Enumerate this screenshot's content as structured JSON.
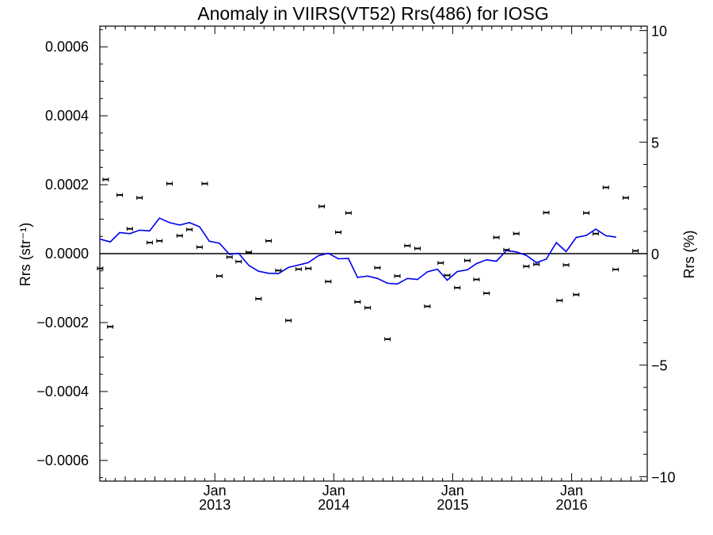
{
  "chart_data": {
    "type": "line",
    "title": "Anomaly in VIIRS(VT52) Rrs(486) for IOSG",
    "ylabel_left": "Rrs (str⁻¹)",
    "ylabel_right": "Rrs (%)",
    "xlabel": "",
    "xlim": [
      "2012-01-14",
      "2016-08-20"
    ],
    "ylim_left": [
      -0.00066,
      0.00066
    ],
    "ylim_right": [
      -10.2,
      10.2
    ],
    "grid": false,
    "zero_line": true,
    "x_ticks": [
      {
        "date": "2013-01-01",
        "month": "Jan",
        "year": "2013"
      },
      {
        "date": "2014-01-01",
        "month": "Jan",
        "year": "2014"
      },
      {
        "date": "2015-01-01",
        "month": "Jan",
        "year": "2015"
      },
      {
        "date": "2016-01-01",
        "month": "Jan",
        "year": "2016"
      }
    ],
    "y_ticks_left": [
      {
        "value": 0.0006,
        "label": "0.0006"
      },
      {
        "value": 0.0004,
        "label": "0.0004"
      },
      {
        "value": 0.0002,
        "label": "0.0002"
      },
      {
        "value": 0.0,
        "label": "0.0000"
      },
      {
        "value": -0.0002,
        "label": "−0.0002"
      },
      {
        "value": -0.0004,
        "label": "−0.0004"
      },
      {
        "value": -0.0006,
        "label": "−0.0006"
      }
    ],
    "y_ticks_right": [
      {
        "value": 10,
        "label": "10"
      },
      {
        "value": 5,
        "label": "5"
      },
      {
        "value": 0,
        "label": "0"
      },
      {
        "value": -5,
        "label": "−5"
      },
      {
        "value": -10,
        "label": "−10"
      }
    ],
    "series": [
      {
        "kind": "points_with_error_bars",
        "color": "#000000",
        "points": [
          {
            "x": "2012-01-15",
            "y": -4.3e-05
          },
          {
            "x": "2012-02-01",
            "y": 0.000215
          },
          {
            "x": "2012-02-15",
            "y": -0.000212
          },
          {
            "x": "2012-03-15",
            "y": 0.00017
          },
          {
            "x": "2012-04-15",
            "y": 7.2e-05
          },
          {
            "x": "2012-05-15",
            "y": 0.000162
          },
          {
            "x": "2012-06-15",
            "y": 3.2e-05
          },
          {
            "x": "2012-07-15",
            "y": 3.7e-05
          },
          {
            "x": "2012-08-15",
            "y": 0.000203
          },
          {
            "x": "2012-09-15",
            "y": 5.2e-05
          },
          {
            "x": "2012-10-15",
            "y": 7e-05
          },
          {
            "x": "2012-11-15",
            "y": 1.9e-05
          },
          {
            "x": "2012-12-01",
            "y": 0.000203
          },
          {
            "x": "2013-01-15",
            "y": -6.5e-05
          },
          {
            "x": "2013-02-15",
            "y": -1e-05
          },
          {
            "x": "2013-03-15",
            "y": -2.3e-05
          },
          {
            "x": "2013-04-15",
            "y": 4e-06
          },
          {
            "x": "2013-05-15",
            "y": -0.000131
          },
          {
            "x": "2013-06-15",
            "y": 3.7e-05
          },
          {
            "x": "2013-07-15",
            "y": -4.9e-05
          },
          {
            "x": "2013-08-15",
            "y": -0.000194
          },
          {
            "x": "2013-09-15",
            "y": -4.5e-05
          },
          {
            "x": "2013-10-15",
            "y": -4.3e-05
          },
          {
            "x": "2013-11-25",
            "y": 0.000137
          },
          {
            "x": "2013-12-15",
            "y": -8.1e-05
          },
          {
            "x": "2014-01-15",
            "y": 6.2e-05
          },
          {
            "x": "2014-02-15",
            "y": 0.000118
          },
          {
            "x": "2014-03-15",
            "y": -0.00014
          },
          {
            "x": "2014-04-15",
            "y": -0.000157
          },
          {
            "x": "2014-05-15",
            "y": -4.1e-05
          },
          {
            "x": "2014-06-15",
            "y": -0.000248
          },
          {
            "x": "2014-07-15",
            "y": -6.5e-05
          },
          {
            "x": "2014-08-15",
            "y": 2.3e-05
          },
          {
            "x": "2014-09-15",
            "y": 1.5e-05
          },
          {
            "x": "2014-10-15",
            "y": -0.000153
          },
          {
            "x": "2014-11-25",
            "y": -2.7e-05
          },
          {
            "x": "2014-12-15",
            "y": -6.3e-05
          },
          {
            "x": "2015-01-15",
            "y": -9.9e-05
          },
          {
            "x": "2015-02-15",
            "y": -2e-05
          },
          {
            "x": "2015-03-15",
            "y": -7.5e-05
          },
          {
            "x": "2015-04-15",
            "y": -0.000115
          },
          {
            "x": "2015-05-15",
            "y": 4.7e-05
          },
          {
            "x": "2015-06-15",
            "y": 1.1e-05
          },
          {
            "x": "2015-07-15",
            "y": 5.8e-05
          },
          {
            "x": "2015-08-15",
            "y": -3.7e-05
          },
          {
            "x": "2015-09-15",
            "y": -3.1e-05
          },
          {
            "x": "2015-10-15",
            "y": 0.000119
          },
          {
            "x": "2015-11-25",
            "y": -0.000136
          },
          {
            "x": "2015-12-15",
            "y": -3.3e-05
          },
          {
            "x": "2016-01-15",
            "y": -0.000119
          },
          {
            "x": "2016-02-15",
            "y": 0.000118
          },
          {
            "x": "2016-03-15",
            "y": 5.8e-05
          },
          {
            "x": "2016-04-15",
            "y": 0.000192
          },
          {
            "x": "2016-05-15",
            "y": -4.6e-05
          },
          {
            "x": "2016-06-15",
            "y": 0.000162
          },
          {
            "x": "2016-07-15",
            "y": 8e-06
          }
        ]
      },
      {
        "kind": "line",
        "color": "#0000ee",
        "points": [
          {
            "x": "2012-01-15",
            "y": 4.2e-05
          },
          {
            "x": "2012-02-15",
            "y": 3.4e-05
          },
          {
            "x": "2012-03-15",
            "y": 6.1e-05
          },
          {
            "x": "2012-04-15",
            "y": 5.8e-05
          },
          {
            "x": "2012-05-15",
            "y": 6.8e-05
          },
          {
            "x": "2012-06-15",
            "y": 6.6e-05
          },
          {
            "x": "2012-07-15",
            "y": 0.000103
          },
          {
            "x": "2012-08-15",
            "y": 9e-05
          },
          {
            "x": "2012-09-15",
            "y": 8.3e-05
          },
          {
            "x": "2012-10-15",
            "y": 9e-05
          },
          {
            "x": "2012-11-15",
            "y": 7.8e-05
          },
          {
            "x": "2012-12-15",
            "y": 3.6e-05
          },
          {
            "x": "2013-01-15",
            "y": 3e-05
          },
          {
            "x": "2013-02-15",
            "y": -2e-06
          },
          {
            "x": "2013-03-15",
            "y": 1e-06
          },
          {
            "x": "2013-04-15",
            "y": -3.4e-05
          },
          {
            "x": "2013-05-15",
            "y": -5.1e-05
          },
          {
            "x": "2013-06-15",
            "y": -5.7e-05
          },
          {
            "x": "2013-07-15",
            "y": -5.8e-05
          },
          {
            "x": "2013-08-15",
            "y": -4e-05
          },
          {
            "x": "2013-09-15",
            "y": -3.3e-05
          },
          {
            "x": "2013-10-15",
            "y": -2.6e-05
          },
          {
            "x": "2013-11-15",
            "y": -6e-06
          },
          {
            "x": "2013-12-15",
            "y": 1e-06
          },
          {
            "x": "2014-01-15",
            "y": -1.5e-05
          },
          {
            "x": "2014-02-15",
            "y": -1.4e-05
          },
          {
            "x": "2014-03-15",
            "y": -6.9e-05
          },
          {
            "x": "2014-04-15",
            "y": -6.5e-05
          },
          {
            "x": "2014-05-15",
            "y": -7.2e-05
          },
          {
            "x": "2014-06-15",
            "y": -8.6e-05
          },
          {
            "x": "2014-07-15",
            "y": -8.8e-05
          },
          {
            "x": "2014-08-15",
            "y": -7.2e-05
          },
          {
            "x": "2014-09-15",
            "y": -7.5e-05
          },
          {
            "x": "2014-10-15",
            "y": -5.3e-05
          },
          {
            "x": "2014-11-15",
            "y": -4.5e-05
          },
          {
            "x": "2014-12-15",
            "y": -7.7e-05
          },
          {
            "x": "2015-01-15",
            "y": -5.2e-05
          },
          {
            "x": "2015-02-15",
            "y": -4.7e-05
          },
          {
            "x": "2015-03-15",
            "y": -2.9e-05
          },
          {
            "x": "2015-04-15",
            "y": -1.8e-05
          },
          {
            "x": "2015-05-15",
            "y": -2.2e-05
          },
          {
            "x": "2015-06-15",
            "y": 9e-06
          },
          {
            "x": "2015-07-15",
            "y": 5e-06
          },
          {
            "x": "2015-08-15",
            "y": -5e-06
          },
          {
            "x": "2015-09-15",
            "y": -2.6e-05
          },
          {
            "x": "2015-10-15",
            "y": -1.6e-05
          },
          {
            "x": "2015-11-15",
            "y": 3.2e-05
          },
          {
            "x": "2015-12-15",
            "y": 6e-06
          },
          {
            "x": "2016-01-15",
            "y": 4.7e-05
          },
          {
            "x": "2016-02-15",
            "y": 5.3e-05
          },
          {
            "x": "2016-03-15",
            "y": 7.1e-05
          },
          {
            "x": "2016-04-15",
            "y": 5.2e-05
          },
          {
            "x": "2016-05-15",
            "y": 4.8e-05
          }
        ]
      }
    ]
  }
}
